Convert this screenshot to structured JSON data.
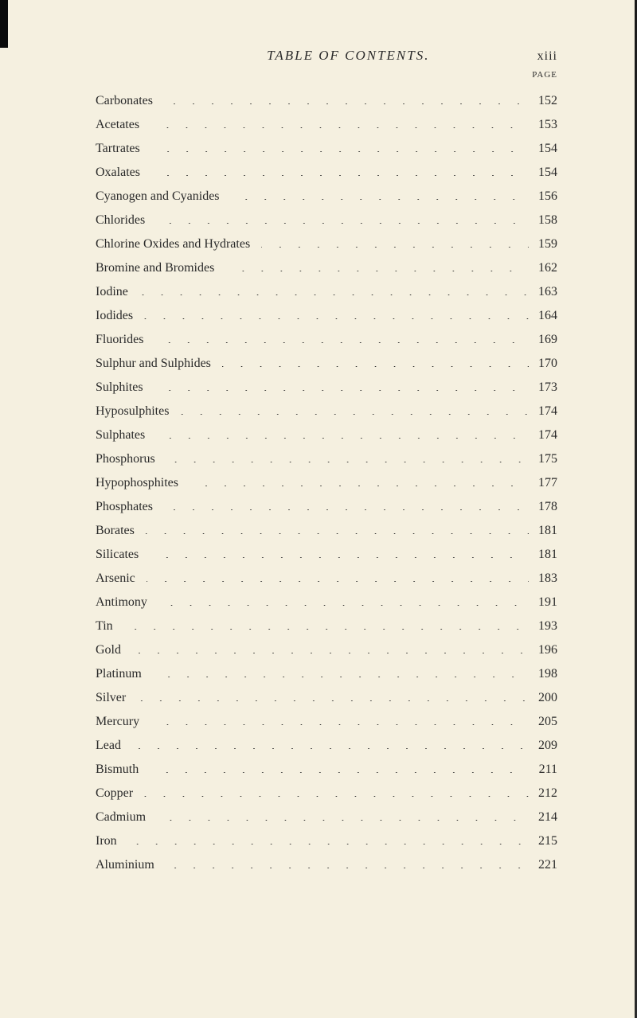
{
  "header": {
    "title": "TABLE OF CONTENTS.",
    "page_number": "xiii",
    "page_label": "PAGE"
  },
  "entries": [
    {
      "label": "Carbonates",
      "page": "152"
    },
    {
      "label": "Acetates",
      "page": "153"
    },
    {
      "label": "Tartrates",
      "page": "154"
    },
    {
      "label": "Oxalates",
      "page": "154"
    },
    {
      "label": "Cyanogen and Cyanides",
      "page": "156"
    },
    {
      "label": "Chlorides",
      "page": "158"
    },
    {
      "label": "Chlorine Oxides and Hydrates",
      "page": "159"
    },
    {
      "label": "Bromine and Bromides",
      "page": "162"
    },
    {
      "label": "Iodine",
      "page": "163"
    },
    {
      "label": "Iodides",
      "page": "164"
    },
    {
      "label": "Fluorides",
      "page": "169"
    },
    {
      "label": "Sulphur and Sulphides",
      "page": "170"
    },
    {
      "label": "Sulphites",
      "page": "173"
    },
    {
      "label": "Hyposulphites",
      "page": "174"
    },
    {
      "label": "Sulphates",
      "page": "174"
    },
    {
      "label": "Phosphorus",
      "page": "175"
    },
    {
      "label": "Hypophosphites",
      "page": "177"
    },
    {
      "label": "Phosphates",
      "page": "178"
    },
    {
      "label": "Borates",
      "page": "181"
    },
    {
      "label": "Silicates",
      "page": "181"
    },
    {
      "label": "Arsenic",
      "page": "183"
    },
    {
      "label": "Antimony",
      "page": "191"
    },
    {
      "label": "Tin",
      "page": "193"
    },
    {
      "label": "Gold",
      "page": "196"
    },
    {
      "label": "Platinum",
      "page": "198"
    },
    {
      "label": "Silver",
      "page": "200"
    },
    {
      "label": "Mercury",
      "page": "205"
    },
    {
      "label": "Lead",
      "page": "209"
    },
    {
      "label": "Bismuth",
      "page": "211"
    },
    {
      "label": "Copper",
      "page": "212"
    },
    {
      "label": "Cadmium",
      "page": "214"
    },
    {
      "label": "Iron",
      "page": "215"
    },
    {
      "label": "Aluminium",
      "page": "221"
    }
  ],
  "style": {
    "background_color": "#f5f0e0",
    "text_color": "#2a2a2a",
    "font_family": "Georgia, 'Times New Roman', serif",
    "entry_fontsize": 16,
    "header_fontsize": 17,
    "dot_spacing": 24
  }
}
